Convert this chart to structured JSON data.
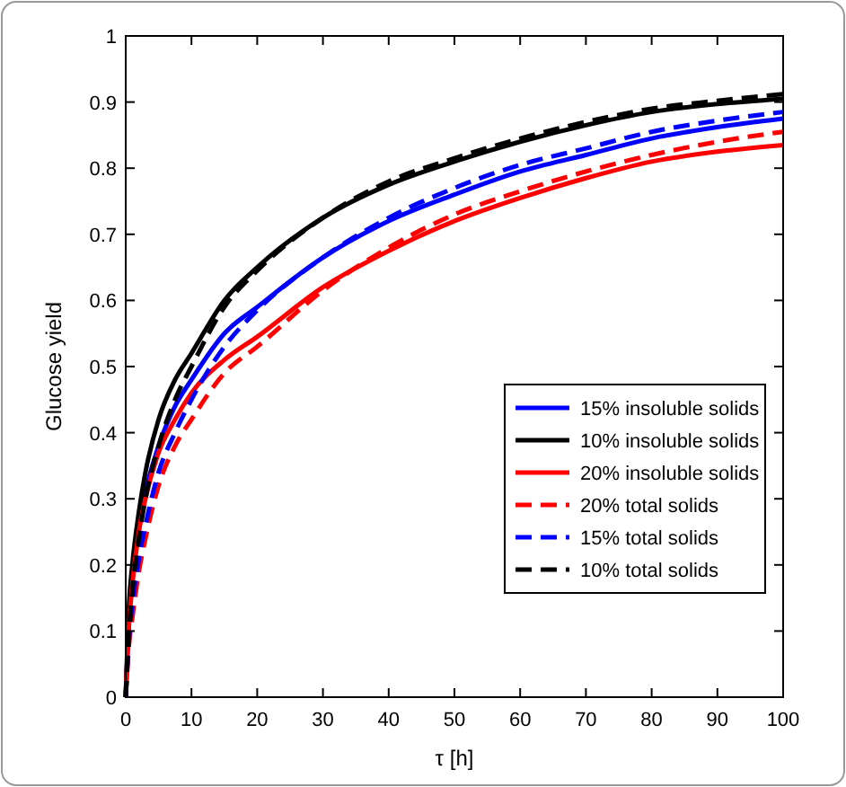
{
  "chart_data": {
    "type": "line",
    "xlabel": "τ [h]",
    "ylabel": "Glucose yield",
    "x": [
      0,
      0.5,
      1,
      2,
      3,
      5,
      7.5,
      10,
      15,
      20,
      30,
      40,
      50,
      60,
      70,
      80,
      90,
      100
    ],
    "xlim": [
      0,
      100
    ],
    "xticks": [
      0,
      10,
      20,
      30,
      40,
      50,
      60,
      70,
      80,
      90,
      100
    ],
    "ylim": [
      0,
      1
    ],
    "yticks": [
      0,
      0.1,
      0.2,
      0.3,
      0.4,
      0.5,
      0.6,
      0.7,
      0.8,
      0.9,
      1
    ],
    "grid": false,
    "legend": "right",
    "marker": "none",
    "series": [
      {
        "name": "15% insoluble solids",
        "color": "#0000ff",
        "line_style": "solid",
        "values": [
          0,
          0.12,
          0.18,
          0.26,
          0.31,
          0.38,
          0.44,
          0.48,
          0.55,
          0.59,
          0.665,
          0.72,
          0.76,
          0.795,
          0.82,
          0.845,
          0.862,
          0.875
        ]
      },
      {
        "name": "10% insoluble solids",
        "color": "#000000",
        "line_style": "solid",
        "values": [
          0,
          0.14,
          0.2,
          0.28,
          0.34,
          0.42,
          0.48,
          0.52,
          0.6,
          0.65,
          0.725,
          0.775,
          0.81,
          0.84,
          0.865,
          0.885,
          0.897,
          0.905
        ]
      },
      {
        "name": "20% insoluble solids",
        "color": "#ff0000",
        "line_style": "solid",
        "values": [
          0,
          0.11,
          0.17,
          0.25,
          0.3,
          0.37,
          0.42,
          0.46,
          0.51,
          0.545,
          0.62,
          0.675,
          0.72,
          0.755,
          0.785,
          0.81,
          0.825,
          0.835
        ]
      },
      {
        "name": "20% total solids",
        "color": "#ff0000",
        "line_style": "dashed",
        "values": [
          0,
          0.08,
          0.12,
          0.19,
          0.24,
          0.32,
          0.38,
          0.42,
          0.49,
          0.53,
          0.615,
          0.68,
          0.73,
          0.765,
          0.795,
          0.82,
          0.84,
          0.855
        ]
      },
      {
        "name": "15% total solids",
        "color": "#0000ff",
        "line_style": "dashed",
        "values": [
          0,
          0.09,
          0.14,
          0.21,
          0.26,
          0.34,
          0.4,
          0.45,
          0.53,
          0.585,
          0.665,
          0.725,
          0.77,
          0.805,
          0.83,
          0.855,
          0.872,
          0.885
        ]
      },
      {
        "name": "10% total solids",
        "color": "#000000",
        "line_style": "dashed",
        "values": [
          0,
          0.1,
          0.16,
          0.24,
          0.3,
          0.38,
          0.45,
          0.5,
          0.59,
          0.645,
          0.725,
          0.78,
          0.815,
          0.845,
          0.87,
          0.89,
          0.902,
          0.912
        ]
      }
    ]
  }
}
